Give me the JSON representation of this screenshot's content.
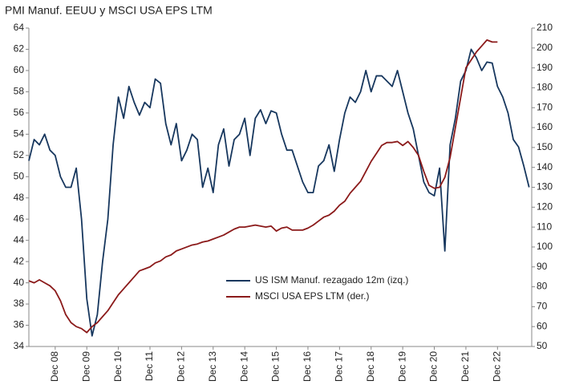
{
  "chart_data": {
    "type": "line",
    "title": "PMI Manuf. EEUU y MSCI USA EPS LTM",
    "x": [
      "2008-02",
      "2008-04",
      "2008-06",
      "2008-08",
      "2008-10",
      "2008-12",
      "2009-02",
      "2009-04",
      "2009-06",
      "2009-08",
      "2009-10",
      "2009-12",
      "2010-02",
      "2010-04",
      "2010-06",
      "2010-08",
      "2010-10",
      "2010-12",
      "2011-02",
      "2011-04",
      "2011-06",
      "2011-08",
      "2011-10",
      "2011-12",
      "2012-02",
      "2012-04",
      "2012-06",
      "2012-08",
      "2012-10",
      "2012-12",
      "2013-02",
      "2013-04",
      "2013-06",
      "2013-08",
      "2013-10",
      "2013-12",
      "2014-02",
      "2014-04",
      "2014-06",
      "2014-08",
      "2014-10",
      "2014-12",
      "2015-02",
      "2015-04",
      "2015-06",
      "2015-08",
      "2015-10",
      "2015-12",
      "2016-02",
      "2016-04",
      "2016-06",
      "2016-08",
      "2016-10",
      "2016-12",
      "2017-02",
      "2017-04",
      "2017-06",
      "2017-08",
      "2017-10",
      "2017-12",
      "2018-02",
      "2018-04",
      "2018-06",
      "2018-08",
      "2018-10",
      "2018-12",
      "2019-02",
      "2019-04",
      "2019-06",
      "2019-08",
      "2019-10",
      "2019-12",
      "2020-02",
      "2020-04",
      "2020-06",
      "2020-08",
      "2020-10",
      "2020-12",
      "2021-02",
      "2021-04",
      "2021-06",
      "2021-08",
      "2021-10",
      "2021-12",
      "2022-02",
      "2022-04",
      "2022-06",
      "2022-08",
      "2022-10",
      "2022-12",
      "2023-02",
      "2023-04",
      "2023-06",
      "2023-08",
      "2023-10",
      "2023-12"
    ],
    "series": [
      {
        "name": "US ISM Manuf.  rezagado  12m  (izq.)",
        "color": "#17375e",
        "axis": "y",
        "values": [
          51.5,
          53.5,
          53,
          54,
          52.5,
          52,
          50,
          49,
          49,
          50.8,
          46,
          38.5,
          35,
          37,
          42,
          46,
          53,
          57.5,
          55.5,
          58.5,
          57,
          55.8,
          57,
          56.5,
          59.2,
          58.8,
          55,
          53,
          55,
          51.5,
          52.5,
          54,
          53.5,
          49,
          50.8,
          48.5,
          53,
          54.5,
          51,
          53.5,
          54,
          55.5,
          52,
          55.5,
          56.3,
          55,
          56.2,
          56,
          54,
          52.5,
          52.5,
          51,
          49.5,
          48.5,
          48.5,
          51,
          51.5,
          53,
          50.5,
          53.5,
          56,
          57.5,
          57,
          58,
          60,
          58,
          59.5,
          59.5,
          59,
          58.5,
          60,
          58,
          56,
          54.5,
          52,
          49.5,
          48.5,
          48.2,
          50.8,
          43,
          53,
          55.5,
          59,
          60,
          62,
          61.2,
          60,
          60.8,
          60.7,
          58.5,
          57.5,
          56,
          53.5,
          52.8,
          51,
          49
        ]
      },
      {
        "name": "MSCI USA EPS LTM (der.)",
        "color": "#8b1a1a",
        "axis": "y2",
        "values": [
          83,
          82,
          83.5,
          82,
          80.5,
          78,
          73,
          66,
          62,
          60,
          59,
          57,
          60,
          62,
          65,
          68,
          72,
          76,
          79,
          82,
          85,
          88,
          89,
          90,
          92,
          93,
          95,
          96,
          98,
          99,
          100,
          101,
          101.5,
          102.5,
          103,
          104,
          105,
          106,
          107.5,
          109,
          110,
          110,
          110.5,
          111,
          110.5,
          110,
          110.5,
          108,
          109.5,
          110,
          108.5,
          108.5,
          108.5,
          109.5,
          111,
          113,
          115,
          116,
          118,
          121,
          123,
          127,
          130,
          133,
          138,
          143,
          147,
          151,
          152.5,
          152.5,
          153,
          151,
          153,
          150,
          146,
          138,
          131,
          129.5,
          130,
          135,
          145,
          160,
          175,
          190,
          194,
          198,
          201,
          204,
          203,
          203,
          null,
          null,
          null,
          null,
          null,
          null
        ]
      }
    ],
    "xlim": [
      "2008-02",
      "2024-01"
    ],
    "xticks": [
      {
        "value": "2008-12",
        "label": "Dec 08"
      },
      {
        "value": "2009-12",
        "label": "Dec 09"
      },
      {
        "value": "2010-12",
        "label": "Dec 10"
      },
      {
        "value": "2011-12",
        "label": "Dec 11"
      },
      {
        "value": "2012-12",
        "label": "Dec 12"
      },
      {
        "value": "2013-12",
        "label": "Dec 13"
      },
      {
        "value": "2014-12",
        "label": "Dec 14"
      },
      {
        "value": "2015-12",
        "label": "Dec 15"
      },
      {
        "value": "2016-12",
        "label": "Dec 16"
      },
      {
        "value": "2017-12",
        "label": "Dec 17"
      },
      {
        "value": "2018-12",
        "label": "Dec 18"
      },
      {
        "value": "2019-12",
        "label": "Dec 19"
      },
      {
        "value": "2020-12",
        "label": "Dec 20"
      },
      {
        "value": "2021-12",
        "label": "Dec 21"
      },
      {
        "value": "2022-12",
        "label": "Dec 22"
      }
    ],
    "ylim": [
      34,
      64
    ],
    "yticks": [
      34,
      36,
      38,
      40,
      42,
      44,
      46,
      48,
      50,
      52,
      54,
      56,
      58,
      60,
      62,
      64
    ],
    "y2lim": [
      50,
      210
    ],
    "y2ticks": [
      50,
      60,
      70,
      80,
      90,
      100,
      110,
      120,
      130,
      140,
      150,
      160,
      170,
      180,
      190,
      200,
      210
    ],
    "grid": false,
    "legend": "lower center"
  }
}
